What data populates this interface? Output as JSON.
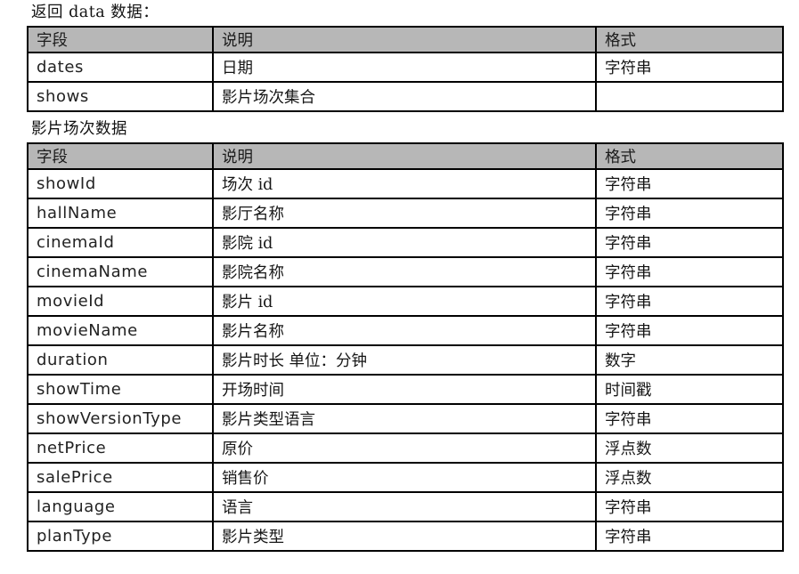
{
  "page": {
    "heading1": "返回 data 数据：",
    "heading2": "影片场次数据"
  },
  "table1": {
    "headers": [
      "字段",
      "说明",
      "格式"
    ],
    "rows": [
      [
        "dates",
        "日期",
        "字符串"
      ],
      [
        "shows",
        "影片场次集合",
        ""
      ]
    ]
  },
  "table2": {
    "headers": [
      "字段",
      "说明",
      "格式"
    ],
    "rows": [
      [
        "showId",
        "场次 id",
        "字符串"
      ],
      [
        "hallName",
        "影厅名称",
        "字符串"
      ],
      [
        "cinemaId",
        "影院 id",
        "字符串"
      ],
      [
        "cinemaName",
        "影院名称",
        "字符串"
      ],
      [
        "movieId",
        "影片 id",
        "字符串"
      ],
      [
        "movieName",
        "影片名称",
        "字符串"
      ],
      [
        "duration",
        "影片时长 单位：分钟",
        "数字"
      ],
      [
        "showTime",
        "开场时间",
        "时间戳"
      ],
      [
        "showVersionType",
        "影片类型语言",
        "字符串"
      ],
      [
        "netPrice",
        "原价",
        "浮点数"
      ],
      [
        "salePrice",
        "销售价",
        "浮点数"
      ],
      [
        "language",
        "语言",
        "字符串"
      ],
      [
        "planType",
        "影片类型",
        "字符串"
      ]
    ]
  },
  "colors": {
    "header_bg": "#b7b7b7",
    "border": "#000000",
    "page_bg": "#ffffff",
    "text": "#161616"
  }
}
